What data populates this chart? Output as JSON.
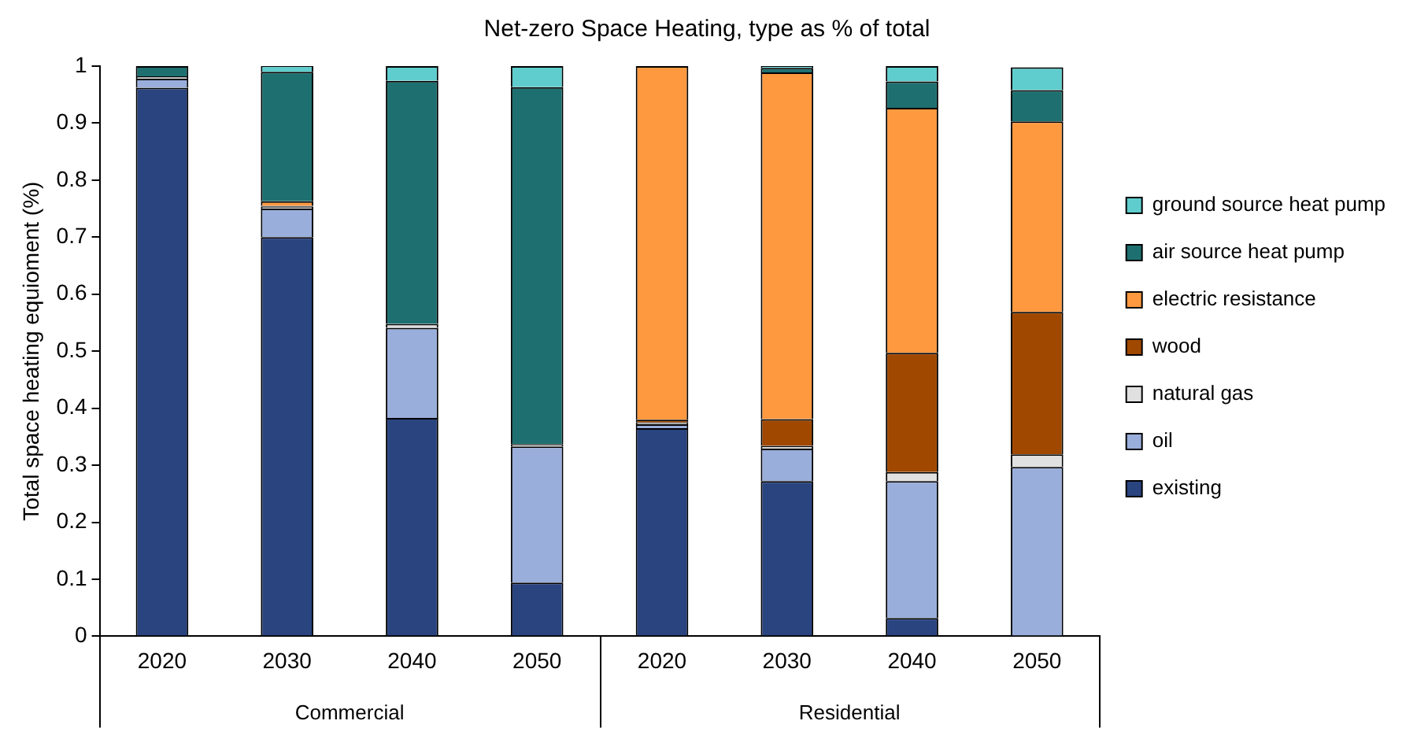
{
  "chart_data": {
    "type": "bar",
    "stacked": true,
    "title": "Net-zero Space Heating, type as % of total",
    "ylabel": "Total space heating equioment (%)",
    "categories": [
      "2020",
      "2030",
      "2040",
      "2050",
      "2020",
      "2030",
      "2040",
      "2050"
    ],
    "annotations": [
      "Commercial",
      "Residential"
    ],
    "series": [
      {
        "name": "existing",
        "color": "#2a4480",
        "values": [
          0.962,
          0.7,
          0.383,
          0.094,
          0.365,
          0.272,
          0.032,
          null
        ]
      },
      {
        "name": "oil",
        "color": "#9aaedb",
        "values": [
          0.016,
          0.05,
          0.158,
          0.239,
          0.007,
          0.057,
          0.24,
          0.297
        ]
      },
      {
        "name": "natural gas",
        "color": "#e0e0e0",
        "values": [
          0.004,
          0.004,
          0.007,
          0.004,
          0.003,
          0.005,
          0.016,
          0.022
        ]
      },
      {
        "name": "wood",
        "color": "#a04800",
        "values": [
          0,
          0.001,
          0,
          0,
          0.005,
          0.047,
          0.209,
          0.25
        ]
      },
      {
        "name": "electric resistance",
        "color": "#ff9940",
        "values": [
          0,
          0.008,
          0,
          0,
          0.62,
          0.608,
          0.43,
          0.334
        ]
      },
      {
        "name": "air source heat pump",
        "color": "#1e7070",
        "values": [
          0.018,
          0.227,
          0.426,
          0.626,
          0,
          0.008,
          0.046,
          0.055
        ]
      },
      {
        "name": "ground source heat pump",
        "color": "#5fcdcd",
        "values": [
          0,
          0.011,
          0.026,
          0.037,
          0,
          0.003,
          0.027,
          0.04
        ]
      }
    ],
    "ylim": [
      0,
      1
    ],
    "yticks": [
      0,
      0.1,
      0.2,
      0.3,
      0.4,
      0.5,
      0.6,
      0.7,
      0.8,
      0.9,
      1
    ],
    "grid": false,
    "legend": "right"
  }
}
